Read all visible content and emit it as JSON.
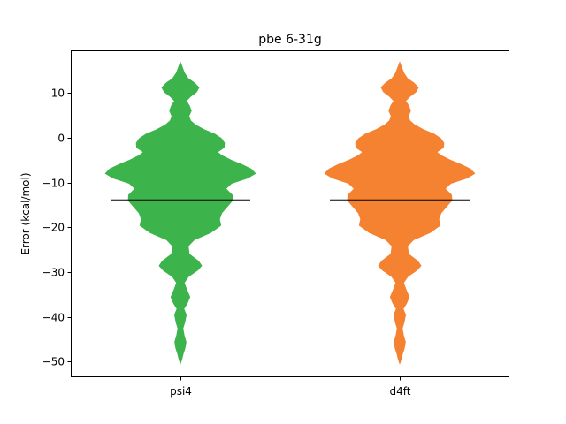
{
  "chart_data": {
    "type": "violin",
    "title": "pbe 6-31g",
    "xlabel": "",
    "ylabel": "Error (kcal/mol)",
    "categories": [
      "psi4",
      "d4ft"
    ],
    "ylim": [
      -53.5,
      19.5
    ],
    "yticks": [
      10,
      0,
      -10,
      -20,
      -30,
      -40,
      -50
    ],
    "ytick_labels": [
      "10",
      "0",
      "−10",
      "−20",
      "−30",
      "−40",
      "−50"
    ],
    "grid": false,
    "series": [
      {
        "category": "psi4",
        "color": "#3cb44b",
        "mean": -13.9,
        "min": -50.4,
        "max": 16.8,
        "density_half_width": [
          [
            -50.4,
            0.0
          ],
          [
            -49.5,
            0.8
          ],
          [
            -48.3,
            1.6
          ],
          [
            -47.0,
            2.7
          ],
          [
            -45.6,
            3.3
          ],
          [
            -44.2,
            2.2
          ],
          [
            -42.6,
            1.4
          ],
          [
            -41.2,
            2.6
          ],
          [
            -39.6,
            3.4
          ],
          [
            -38.2,
            2.0
          ],
          [
            -37.0,
            4.0
          ],
          [
            -35.6,
            5.6
          ],
          [
            -34.0,
            3.8
          ],
          [
            -32.4,
            2.2
          ],
          [
            -31.0,
            4.8
          ],
          [
            -29.6,
            10.2
          ],
          [
            -28.6,
            12.6
          ],
          [
            -27.6,
            10.8
          ],
          [
            -26.0,
            5.2
          ],
          [
            -24.2,
            4.6
          ],
          [
            -22.8,
            8.2
          ],
          [
            -21.2,
            18.0
          ],
          [
            -19.6,
            24.0
          ],
          [
            -18.2,
            23.2
          ],
          [
            -16.8,
            24.6
          ],
          [
            -15.4,
            27.8
          ],
          [
            -14.0,
            31.0
          ],
          [
            -12.8,
            30.8
          ],
          [
            -11.4,
            27.0
          ],
          [
            -10.2,
            30.4
          ],
          [
            -9.0,
            40.0
          ],
          [
            -8.0,
            44.6
          ],
          [
            -7.0,
            42.0
          ],
          [
            -6.0,
            36.4
          ],
          [
            -5.0,
            30.0
          ],
          [
            -4.0,
            24.6
          ],
          [
            -3.2,
            22.0
          ],
          [
            -2.2,
            26.0
          ],
          [
            -1.2,
            26.2
          ],
          [
            -0.2,
            24.4
          ],
          [
            0.8,
            20.4
          ],
          [
            1.8,
            14.0
          ],
          [
            2.8,
            9.0
          ],
          [
            3.8,
            6.0
          ],
          [
            4.8,
            5.0
          ],
          [
            6.0,
            6.4
          ],
          [
            7.2,
            5.2
          ],
          [
            8.2,
            3.4
          ],
          [
            9.2,
            6.0
          ],
          [
            10.2,
            9.6
          ],
          [
            11.2,
            11.0
          ],
          [
            12.2,
            8.4
          ],
          [
            13.2,
            4.6
          ],
          [
            14.4,
            2.4
          ],
          [
            15.6,
            1.2
          ],
          [
            16.8,
            0.0
          ]
        ]
      },
      {
        "category": "d4ft",
        "color": "#f58231",
        "mean": -13.9,
        "min": -50.4,
        "max": 16.8,
        "density_half_width": [
          [
            -50.4,
            0.0
          ],
          [
            -49.5,
            0.8
          ],
          [
            -48.3,
            1.6
          ],
          [
            -47.0,
            2.7
          ],
          [
            -45.6,
            3.3
          ],
          [
            -44.2,
            2.2
          ],
          [
            -42.6,
            1.4
          ],
          [
            -41.2,
            2.6
          ],
          [
            -39.6,
            3.4
          ],
          [
            -38.2,
            2.0
          ],
          [
            -37.0,
            4.0
          ],
          [
            -35.6,
            5.6
          ],
          [
            -34.0,
            3.8
          ],
          [
            -32.4,
            2.2
          ],
          [
            -31.0,
            4.8
          ],
          [
            -29.6,
            10.2
          ],
          [
            -28.6,
            12.6
          ],
          [
            -27.6,
            10.8
          ],
          [
            -26.0,
            5.2
          ],
          [
            -24.2,
            4.6
          ],
          [
            -22.8,
            8.2
          ],
          [
            -21.2,
            18.0
          ],
          [
            -19.6,
            24.0
          ],
          [
            -18.2,
            23.2
          ],
          [
            -16.8,
            24.6
          ],
          [
            -15.4,
            27.8
          ],
          [
            -14.0,
            31.0
          ],
          [
            -12.8,
            30.8
          ],
          [
            -11.4,
            27.0
          ],
          [
            -10.2,
            30.4
          ],
          [
            -9.0,
            40.0
          ],
          [
            -8.0,
            44.6
          ],
          [
            -7.0,
            42.0
          ],
          [
            -6.0,
            36.4
          ],
          [
            -5.0,
            30.0
          ],
          [
            -4.0,
            24.6
          ],
          [
            -3.2,
            22.0
          ],
          [
            -2.2,
            26.0
          ],
          [
            -1.2,
            26.2
          ],
          [
            -0.2,
            24.4
          ],
          [
            0.8,
            20.4
          ],
          [
            1.8,
            14.0
          ],
          [
            2.8,
            9.0
          ],
          [
            3.8,
            6.0
          ],
          [
            4.8,
            5.0
          ],
          [
            6.0,
            6.4
          ],
          [
            7.2,
            5.2
          ],
          [
            8.2,
            3.4
          ],
          [
            9.2,
            6.0
          ],
          [
            10.2,
            9.6
          ],
          [
            11.2,
            11.0
          ],
          [
            12.2,
            8.4
          ],
          [
            13.2,
            4.6
          ],
          [
            14.4,
            2.4
          ],
          [
            15.6,
            1.2
          ],
          [
            16.8,
            0.0
          ]
        ]
      }
    ]
  }
}
